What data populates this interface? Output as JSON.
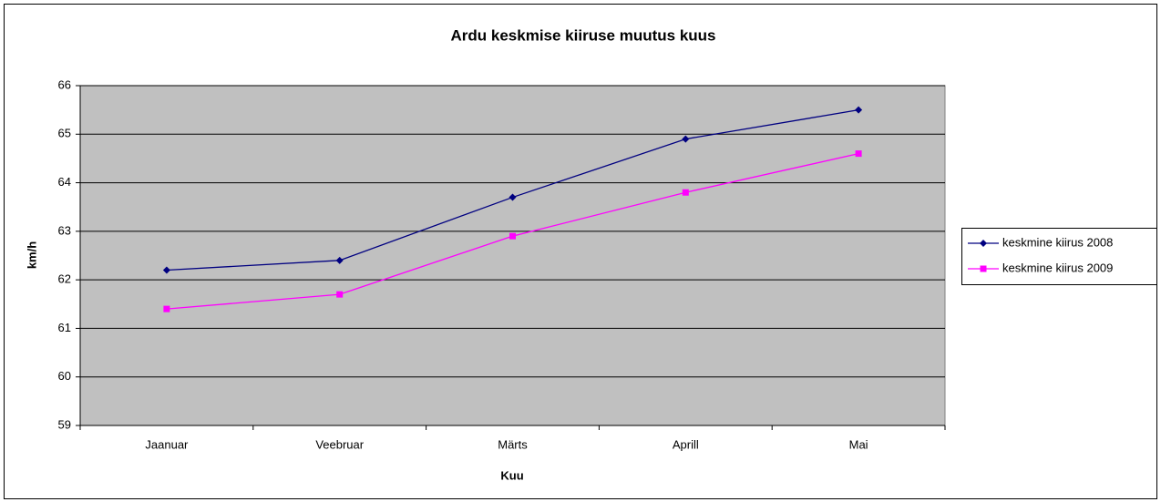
{
  "chart_data": {
    "type": "line",
    "title": "Ardu keskmise kiiruse muutus kuus",
    "x_label": "Kuu",
    "y_label": "km/h",
    "categories": [
      "Jaanuar",
      "Veebruar",
      "Märts",
      "Aprill",
      "Mai"
    ],
    "series": [
      {
        "name": "keskmine kiirus 2008",
        "color": "#000080",
        "marker": "diamond",
        "values": [
          62.2,
          62.4,
          63.7,
          64.9,
          65.5
        ]
      },
      {
        "name": "keskmine kiirus 2009",
        "color": "#ff00ff",
        "marker": "square",
        "values": [
          61.4,
          61.7,
          62.9,
          63.8,
          64.6
        ]
      }
    ],
    "ylim": [
      59,
      66
    ],
    "yticks": [
      59,
      60,
      61,
      62,
      63,
      64,
      65,
      66
    ],
    "grid": true,
    "legend": "right"
  }
}
